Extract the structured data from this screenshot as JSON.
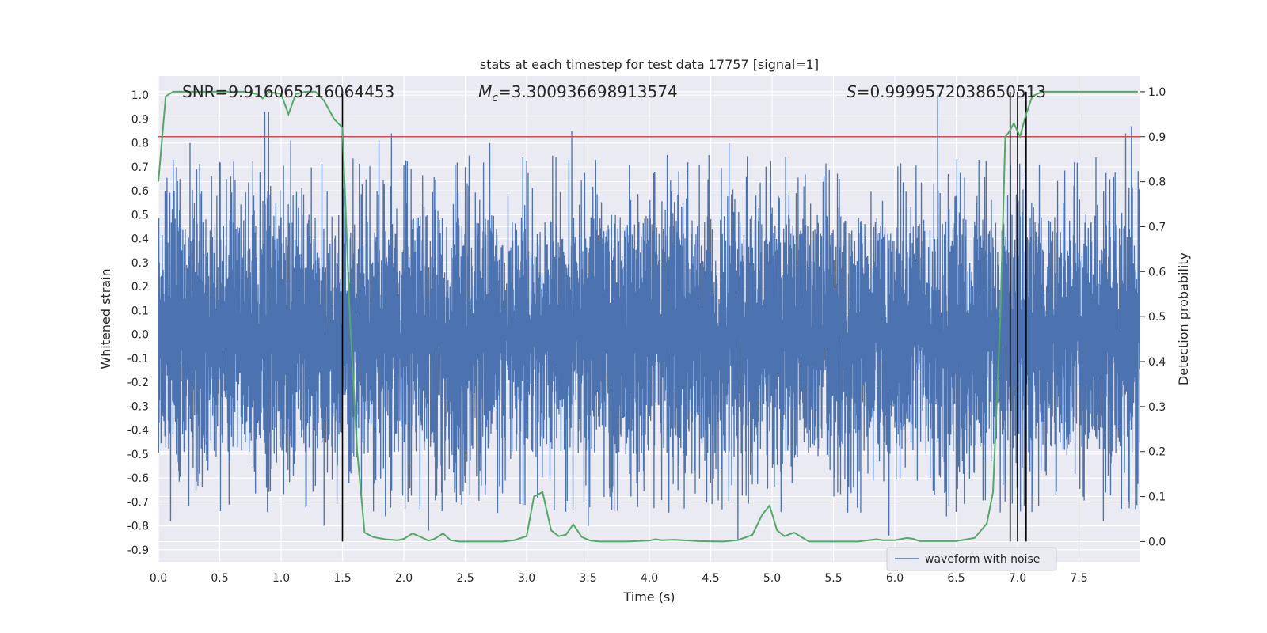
{
  "chart_data": {
    "type": "line",
    "title": "stats at each timestep for test data 17757 [signal=1]",
    "xlabel": "Time (s)",
    "ylabel_left": "Whitened strain",
    "ylabel_right": "Detection probability",
    "xlim": [
      0.0,
      8.0
    ],
    "ylim_left": [
      -0.95,
      1.08
    ],
    "ylim_right": [
      -0.045,
      1.035
    ],
    "x_ticks": [
      "0.0",
      "0.5",
      "1.0",
      "1.5",
      "2.0",
      "2.5",
      "3.0",
      "3.5",
      "4.0",
      "4.5",
      "5.0",
      "5.5",
      "6.0",
      "6.5",
      "7.0",
      "7.5"
    ],
    "y_ticks_left": [
      "1.0",
      "0.9",
      "0.8",
      "0.7",
      "0.6",
      "0.5",
      "0.4",
      "0.3",
      "0.2",
      "0.1",
      "0.0",
      "-0.1",
      "-0.2",
      "-0.3",
      "-0.4",
      "-0.5",
      "-0.6",
      "-0.7",
      "-0.8",
      "-0.9"
    ],
    "y_ticks_right": [
      "1.0",
      "0.9",
      "0.8",
      "0.7",
      "0.6",
      "0.5",
      "0.4",
      "0.3",
      "0.2",
      "0.1",
      "0.0"
    ],
    "grid": true,
    "legend": {
      "position": "lower-right",
      "entries": [
        "waveform with noise"
      ]
    },
    "annotations": {
      "snr": "SNR=9.916065216064453",
      "mc_symbol": "M",
      "mc_sub": "c",
      "mc_value": "=3.300936698913574",
      "s_symbol": "S",
      "s_value": "=0.9999572038650513"
    },
    "threshold_right": 0.9,
    "vertical_lines_x": [
      1.5,
      6.94,
      7.0,
      7.07
    ],
    "waveform": {
      "name": "waveform with noise",
      "color": "#4c72b0",
      "envelope_typical": [
        -0.3,
        0.3
      ],
      "spike_max": 1.0,
      "spike_min": -0.86,
      "spikes_up": [
        [
          0.87,
          0.93
        ],
        [
          0.9,
          0.93
        ],
        [
          1.08,
          0.81
        ],
        [
          1.8,
          0.81
        ],
        [
          1.9,
          0.84
        ],
        [
          3.37,
          0.85
        ],
        [
          6.35,
          1.0
        ],
        [
          7.88,
          0.84
        ],
        [
          7.93,
          0.87
        ],
        [
          0.26,
          0.8
        ],
        [
          2.7,
          0.8
        ],
        [
          4.65,
          0.8
        ]
      ],
      "spikes_down": [
        [
          0.1,
          -0.78
        ],
        [
          1.35,
          -0.8
        ],
        [
          1.85,
          -0.76
        ],
        [
          2.2,
          -0.82
        ],
        [
          3.5,
          -0.8
        ],
        [
          4.72,
          -0.86
        ],
        [
          5.95,
          -0.84
        ],
        [
          6.42,
          -0.76
        ],
        [
          7.7,
          -0.78
        ],
        [
          7.9,
          -0.7
        ]
      ]
    },
    "detection_probability": {
      "color": "#55a868",
      "x": [
        0.0,
        0.06,
        0.12,
        0.2,
        0.3,
        0.4,
        0.5,
        0.6,
        0.7,
        0.8,
        0.85,
        0.9,
        1.0,
        1.06,
        1.12,
        1.2,
        1.28,
        1.35,
        1.43,
        1.5,
        1.56,
        1.62,
        1.68,
        1.75,
        1.85,
        1.95,
        2.0,
        2.07,
        2.14,
        2.2,
        2.25,
        2.32,
        2.38,
        2.45,
        2.6,
        2.8,
        2.9,
        3.0,
        3.06,
        3.13,
        3.2,
        3.26,
        3.32,
        3.38,
        3.45,
        3.52,
        3.6,
        3.8,
        4.0,
        4.05,
        4.1,
        4.2,
        4.4,
        4.6,
        4.72,
        4.84,
        4.92,
        4.98,
        5.04,
        5.1,
        5.18,
        5.3,
        5.5,
        5.7,
        5.85,
        5.9,
        6.0,
        6.1,
        6.15,
        6.2,
        6.5,
        6.65,
        6.75,
        6.8,
        6.86,
        6.9,
        6.93,
        6.97,
        7.02,
        7.07,
        7.12,
        7.2,
        7.3,
        7.5,
        7.7,
        7.98
      ],
      "y": [
        0.8,
        0.99,
        1.0,
        1.0,
        1.0,
        1.0,
        1.0,
        1.0,
        1.0,
        0.995,
        0.985,
        1.0,
        0.995,
        0.95,
        0.995,
        1.0,
        1.0,
        0.98,
        0.94,
        0.92,
        0.5,
        0.2,
        0.02,
        0.01,
        0.005,
        0.003,
        0.006,
        0.018,
        0.01,
        0.002,
        0.006,
        0.018,
        0.003,
        0.0,
        0.0,
        0.0,
        0.003,
        0.012,
        0.1,
        0.11,
        0.025,
        0.012,
        0.015,
        0.038,
        0.01,
        0.002,
        0.0,
        0.0,
        0.002,
        0.005,
        0.003,
        0.004,
        0.001,
        0.0,
        0.003,
        0.015,
        0.06,
        0.08,
        0.025,
        0.012,
        0.02,
        0.0,
        0.0,
        0.0,
        0.005,
        0.003,
        0.003,
        0.008,
        0.006,
        0.001,
        0.001,
        0.008,
        0.04,
        0.11,
        0.5,
        0.9,
        0.91,
        0.93,
        0.9,
        0.95,
        0.99,
        1.0,
        1.0,
        1.0,
        1.0,
        1.0
      ]
    }
  }
}
